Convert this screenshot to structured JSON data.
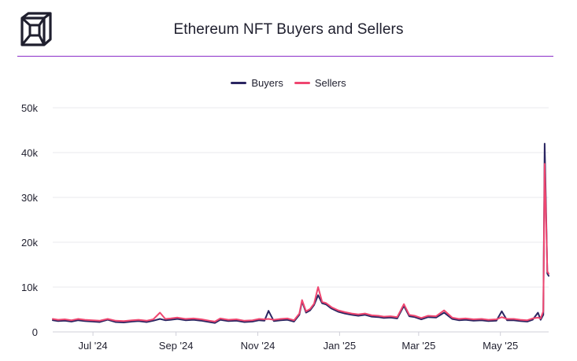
{
  "title": "Ethereum NFT Buyers and Sellers",
  "logo": {
    "icon": "cube-icon"
  },
  "colors": {
    "accent_rule": "#8b2fc9",
    "buyers": "#2b2662",
    "sellers": "#ef4670"
  },
  "chart_data": {
    "type": "line",
    "title": "Ethereum NFT Buyers and Sellers",
    "xlabel": "",
    "ylabel": "",
    "ylim": [
      0,
      50000
    ],
    "y_ticks": [
      0,
      10000,
      20000,
      30000,
      40000,
      50000
    ],
    "y_tick_labels": [
      "0",
      "10k",
      "20k",
      "30k",
      "40k",
      "50k"
    ],
    "x_ticks": [
      "2024-07-01",
      "2024-09-01",
      "2024-11-01",
      "2025-01-01",
      "2025-03-01",
      "2025-05-01"
    ],
    "x_tick_labels": [
      "Jul '24",
      "Sep '24",
      "Nov '24",
      "Jan '25",
      "Mar '25",
      "May '25"
    ],
    "xlim": [
      "2024-06-01",
      "2025-06-06"
    ],
    "grid": "horizontal",
    "legend_position": "top",
    "x": [
      "2024-06-01",
      "2024-06-05",
      "2024-06-10",
      "2024-06-15",
      "2024-06-20",
      "2024-06-25",
      "2024-07-01",
      "2024-07-06",
      "2024-07-12",
      "2024-07-18",
      "2024-07-24",
      "2024-07-30",
      "2024-08-04",
      "2024-08-10",
      "2024-08-15",
      "2024-08-20",
      "2024-08-24",
      "2024-08-28",
      "2024-09-02",
      "2024-09-08",
      "2024-09-14",
      "2024-09-20",
      "2024-09-26",
      "2024-09-30",
      "2024-10-04",
      "2024-10-10",
      "2024-10-16",
      "2024-10-22",
      "2024-10-28",
      "2024-11-02",
      "2024-11-06",
      "2024-11-09",
      "2024-11-13",
      "2024-11-18",
      "2024-11-23",
      "2024-11-28",
      "2024-12-02",
      "2024-12-04",
      "2024-12-07",
      "2024-12-10",
      "2024-12-13",
      "2024-12-16",
      "2024-12-19",
      "2024-12-22",
      "2024-12-26",
      "2024-12-31",
      "2025-01-05",
      "2025-01-10",
      "2025-01-15",
      "2025-01-20",
      "2025-01-25",
      "2025-01-30",
      "2025-02-03",
      "2025-02-08",
      "2025-02-13",
      "2025-02-18",
      "2025-02-22",
      "2025-02-26",
      "2025-03-03",
      "2025-03-08",
      "2025-03-14",
      "2025-03-20",
      "2025-03-26",
      "2025-03-31",
      "2025-04-05",
      "2025-04-11",
      "2025-04-17",
      "2025-04-22",
      "2025-04-28",
      "2025-05-02",
      "2025-05-06",
      "2025-05-11",
      "2025-05-16",
      "2025-05-21",
      "2025-05-25",
      "2025-05-29",
      "2025-05-31",
      "2025-06-02",
      "2025-06-03",
      "2025-06-04",
      "2025-06-05",
      "2025-06-06"
    ],
    "series": [
      {
        "name": "Buyers",
        "color": "#2b2662",
        "values": [
          2600,
          2400,
          2500,
          2300,
          2600,
          2400,
          2300,
          2200,
          2700,
          2200,
          2100,
          2300,
          2400,
          2200,
          2500,
          2900,
          2600,
          2700,
          2900,
          2600,
          2700,
          2500,
          2200,
          2000,
          2700,
          2400,
          2500,
          2200,
          2300,
          2600,
          2500,
          4700,
          2400,
          2600,
          2700,
          2300,
          3800,
          6800,
          4300,
          4800,
          6000,
          8200,
          6400,
          6100,
          5200,
          4500,
          4100,
          3800,
          3600,
          3800,
          3400,
          3300,
          3100,
          3200,
          3000,
          5800,
          3500,
          3300,
          2800,
          3300,
          3200,
          4300,
          2900,
          2600,
          2700,
          2500,
          2600,
          2400,
          2500,
          4600,
          2600,
          2600,
          2400,
          2300,
          2700,
          4300,
          2700,
          3800,
          42000,
          28000,
          13000,
          12500
        ]
      },
      {
        "name": "Sellers",
        "color": "#ef4670",
        "values": [
          2900,
          2700,
          2800,
          2600,
          2900,
          2700,
          2600,
          2500,
          2900,
          2500,
          2400,
          2600,
          2700,
          2500,
          2800,
          4300,
          2900,
          3000,
          3200,
          2900,
          3000,
          2800,
          2500,
          2300,
          3000,
          2700,
          2800,
          2500,
          2600,
          2900,
          2800,
          2900,
          2700,
          2900,
          3000,
          2600,
          4100,
          7100,
          4600,
          5100,
          6300,
          10000,
          6700,
          6400,
          5500,
          4800,
          4400,
          4100,
          3900,
          4100,
          3700,
          3600,
          3400,
          3500,
          3300,
          6200,
          3800,
          3600,
          3100,
          3600,
          3500,
          4800,
          3200,
          2900,
          3000,
          2800,
          2900,
          2700,
          2800,
          3300,
          2900,
          2900,
          2700,
          2600,
          3000,
          3200,
          3000,
          4600,
          37500,
          26000,
          13500,
          13000
        ]
      }
    ]
  }
}
